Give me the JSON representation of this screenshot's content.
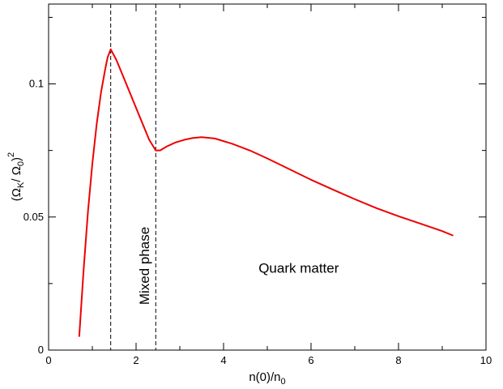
{
  "chart_data": {
    "type": "line",
    "xlabel": "n(0)/n",
    "xlabel_subscript": "0",
    "ylabel": {
      "open": "(Ω",
      "sub1": "K",
      "mid": "/ Ω",
      "sub2": "0",
      "close": ")",
      "sup": "2"
    },
    "xlim": [
      0,
      10
    ],
    "ylim": [
      0,
      0.13
    ],
    "xticks": [
      {
        "value": 0,
        "label": "0"
      },
      {
        "value": 2,
        "label": "2"
      },
      {
        "value": 4,
        "label": "4"
      },
      {
        "value": 6,
        "label": "6"
      },
      {
        "value": 8,
        "label": "8"
      },
      {
        "value": 10,
        "label": "10"
      }
    ],
    "yticks": [
      {
        "value": 0,
        "label": "0"
      },
      {
        "value": 0.05,
        "label": "0.05"
      },
      {
        "value": 0.1,
        "label": "0.1"
      }
    ],
    "x_minor_step": 1,
    "y_minor_step": 0.025,
    "grid": false,
    "series": [
      {
        "color": "#ee0000",
        "points": [
          [
            0.7,
            0.005
          ],
          [
            0.8,
            0.03
          ],
          [
            0.9,
            0.052
          ],
          [
            1.0,
            0.07
          ],
          [
            1.1,
            0.085
          ],
          [
            1.2,
            0.097
          ],
          [
            1.3,
            0.106
          ],
          [
            1.35,
            0.11
          ],
          [
            1.42,
            0.113
          ],
          [
            1.55,
            0.109
          ],
          [
            1.7,
            0.103
          ],
          [
            1.85,
            0.097
          ],
          [
            2.0,
            0.091
          ],
          [
            2.15,
            0.085
          ],
          [
            2.3,
            0.079
          ],
          [
            2.45,
            0.075
          ],
          [
            2.55,
            0.075
          ],
          [
            2.7,
            0.0765
          ],
          [
            2.9,
            0.078
          ],
          [
            3.1,
            0.079
          ],
          [
            3.3,
            0.0797
          ],
          [
            3.5,
            0.08
          ],
          [
            3.8,
            0.0795
          ],
          [
            4.2,
            0.0775
          ],
          [
            4.6,
            0.075
          ],
          [
            5.0,
            0.072
          ],
          [
            5.5,
            0.068
          ],
          [
            6.0,
            0.064
          ],
          [
            6.5,
            0.0603
          ],
          [
            7.0,
            0.0567
          ],
          [
            7.5,
            0.0533
          ],
          [
            8.0,
            0.0503
          ],
          [
            8.5,
            0.0475
          ],
          [
            9.0,
            0.0447
          ],
          [
            9.25,
            0.043
          ]
        ]
      }
    ],
    "vlines": [
      1.42,
      2.45
    ],
    "annotations": [
      {
        "text": "Mixed phase",
        "x": 2.3,
        "y": 0.017,
        "rotation": -90
      },
      {
        "text": "Quark matter",
        "x": 4.8,
        "y": 0.029,
        "rotation": 0
      }
    ]
  }
}
